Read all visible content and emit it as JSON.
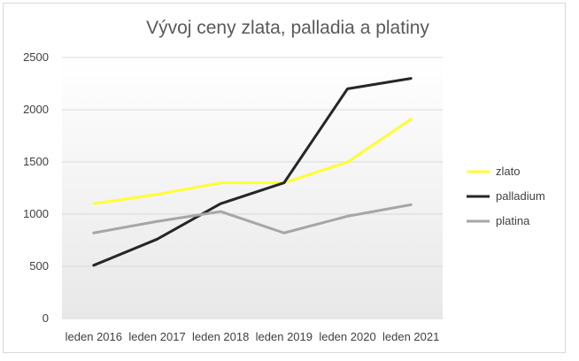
{
  "chart_data": {
    "type": "line",
    "title": "Vývoj ceny zlata, palladia a platiny",
    "xlabel": "",
    "ylabel": "",
    "categories": [
      "leden 2016",
      "leden 2017",
      "leden 2018",
      "leden 2019",
      "leden 2020",
      "leden 2021"
    ],
    "ylim": [
      0,
      2500
    ],
    "yticks": [
      0,
      500,
      1000,
      1500,
      2000,
      2500
    ],
    "grid": true,
    "legend_position": "right",
    "series": [
      {
        "name": "zlato",
        "color": "#ffff33",
        "values": [
          1100,
          1190,
          1300,
          1300,
          1500,
          1910
        ]
      },
      {
        "name": "palladium",
        "color": "#262626",
        "values": [
          510,
          760,
          1100,
          1300,
          2200,
          2300
        ]
      },
      {
        "name": "platina",
        "color": "#a6a6a6",
        "values": [
          820,
          930,
          1025,
          820,
          980,
          1090
        ]
      }
    ]
  }
}
